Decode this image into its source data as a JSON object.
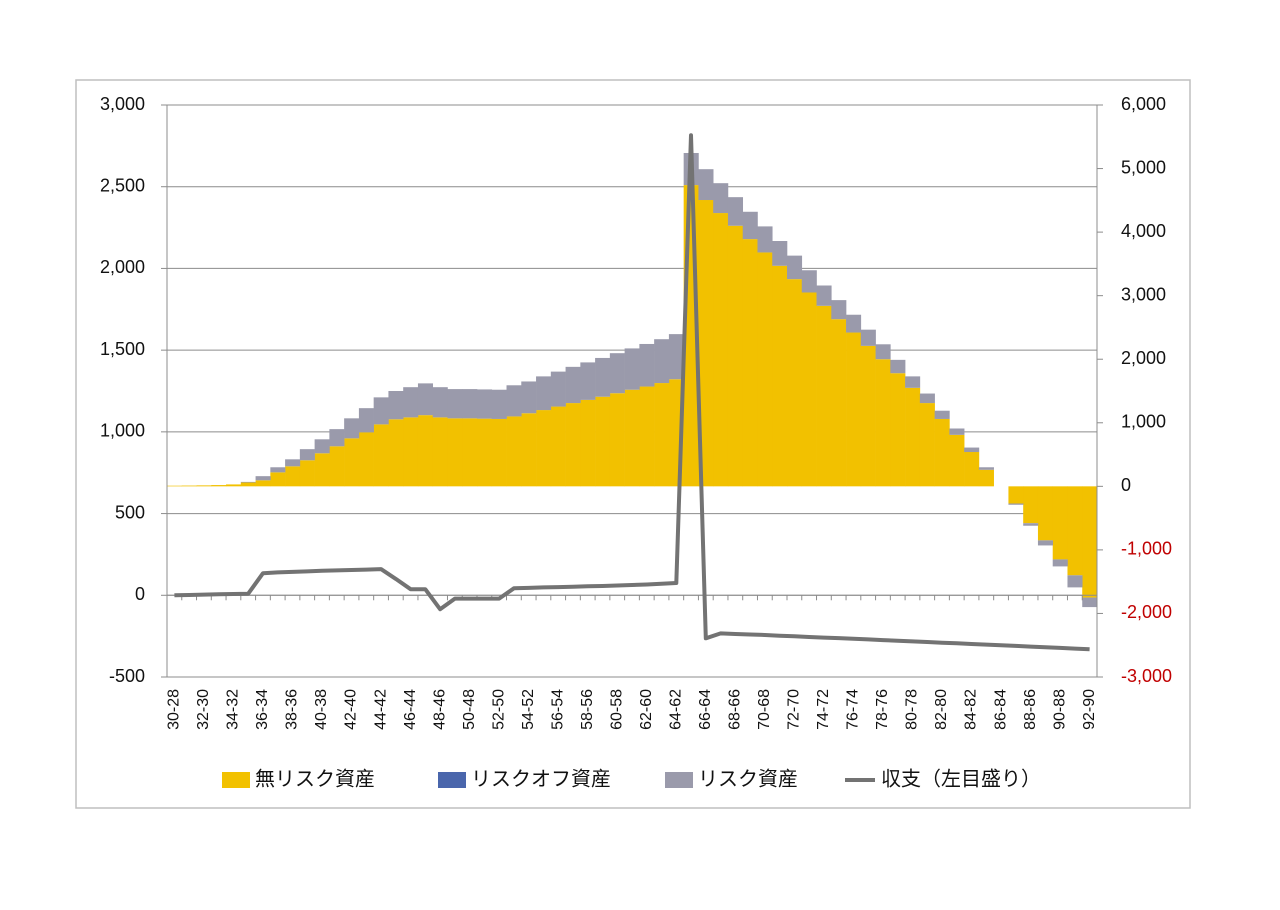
{
  "chart_data": {
    "type": "combo",
    "categories": [
      "30-28",
      null,
      "32-30",
      null,
      "34-32",
      null,
      "36-34",
      null,
      "38-36",
      null,
      "40-38",
      null,
      "42-40",
      null,
      "44-42",
      null,
      "46-44",
      null,
      "48-46",
      null,
      "50-48",
      null,
      "52-50",
      null,
      "54-52",
      null,
      "56-54",
      null,
      "58-56",
      null,
      "60-58",
      null,
      "62-60",
      null,
      "64-62",
      null,
      "66-64",
      null,
      "68-66",
      null,
      "70-68",
      null,
      "72-70",
      null,
      "74-72",
      null,
      "76-74",
      null,
      "78-76",
      null,
      "80-78",
      null,
      "82-80",
      null,
      "84-82",
      null,
      "86-84",
      null,
      "88-86",
      null,
      "90-88",
      null,
      "92-90"
    ],
    "series": [
      {
        "name": "無リスク資産",
        "color": "#f2c100",
        "kind": "bar",
        "axis": "y2",
        "values": [
          10,
          12,
          15,
          20,
          30,
          60,
          95,
          220,
          315,
          410,
          520,
          630,
          755,
          850,
          975,
          1055,
          1085,
          1120,
          1085,
          1070,
          1070,
          1065,
          1060,
          1100,
          1150,
          1200,
          1255,
          1310,
          1360,
          1410,
          1465,
          1520,
          1570,
          1625,
          1685,
          4740,
          4505,
          4300,
          4100,
          3890,
          3680,
          3470,
          3260,
          3050,
          2840,
          2630,
          2420,
          2210,
          2000,
          1780,
          1550,
          1310,
          1060,
          810,
          540,
          260,
          0,
          -270,
          -580,
          -850,
          -1150,
          -1400,
          -1750
        ]
      },
      {
        "name": "リスクオフ資産",
        "color": "#4a66ac",
        "kind": "bar",
        "axis": "y2",
        "values": [
          0,
          0,
          0,
          0,
          0,
          0,
          0,
          0,
          0,
          0,
          0,
          0,
          0,
          0,
          0,
          0,
          0,
          0,
          0,
          0,
          0,
          0,
          0,
          0,
          0,
          0,
          0,
          0,
          0,
          0,
          0,
          0,
          0,
          0,
          0,
          0,
          0,
          0,
          0,
          0,
          0,
          0,
          0,
          0,
          0,
          0,
          0,
          0,
          0,
          0,
          0,
          0,
          0,
          0,
          0,
          0,
          0,
          0,
          0,
          0,
          0,
          0,
          0
        ]
      },
      {
        "name": "リスク資産",
        "color": "#9a9aab",
        "kind": "bar",
        "axis": "y2",
        "values": [
          0,
          0,
          0,
          0,
          0,
          10,
          65,
          80,
          110,
          175,
          220,
          270,
          315,
          380,
          425,
          445,
          475,
          500,
          475,
          460,
          460,
          460,
          460,
          490,
          500,
          530,
          550,
          570,
          590,
          610,
          630,
          650,
          670,
          690,
          710,
          505,
          485,
          470,
          450,
          430,
          410,
          390,
          370,
          350,
          320,
          300,
          280,
          255,
          235,
          210,
          180,
          150,
          130,
          100,
          70,
          40,
          0,
          -20,
          -40,
          -80,
          -110,
          -190,
          -150
        ]
      },
      {
        "name": "収支（左目盛り）",
        "color": "#737373",
        "kind": "line",
        "axis": "y",
        "values": [
          0,
          2,
          4,
          6,
          8,
          10,
          135,
          140,
          143,
          146,
          150,
          152,
          155,
          157,
          160,
          100,
          37,
          37,
          -85,
          -20,
          -20,
          -20,
          -20,
          43,
          45,
          48,
          50,
          52,
          55,
          57,
          60,
          63,
          66,
          70,
          75,
          2815,
          -263,
          -233,
          -237,
          -240,
          -243,
          -247,
          -251,
          -255,
          -259,
          -262,
          -266,
          -270,
          -274,
          -278,
          -282,
          -286,
          -290,
          -294,
          -298,
          -302,
          -306,
          -310,
          -314,
          -318,
          -322,
          -326,
          -330
        ]
      }
    ],
    "ylim": [
      -500,
      3000
    ],
    "yticks": [
      -500,
      0,
      500,
      {
        "value": 1000,
        "label": "1,000"
      },
      {
        "value": 1500,
        "label": "1,500"
      },
      {
        "value": 2000,
        "label": "2,000"
      },
      {
        "value": 2500,
        "label": "2,500"
      },
      {
        "value": 3000,
        "label": "3,000"
      }
    ],
    "y2lim": [
      -3000,
      6000
    ],
    "y2ticks": [
      {
        "value": -3000,
        "label": "-3,000"
      },
      {
        "value": -2000,
        "label": "-2,000"
      },
      {
        "value": -1000,
        "label": "-1,000"
      },
      0,
      {
        "value": 1000,
        "label": "1,000"
      },
      {
        "value": 2000,
        "label": "2,000"
      },
      {
        "value": 3000,
        "label": "3,000"
      },
      {
        "value": 4000,
        "label": "4,000"
      },
      {
        "value": 5000,
        "label": "5,000"
      },
      {
        "value": 6000,
        "label": "6,000"
      }
    ],
    "y2_negative_label_color": "#c00000",
    "grid": true,
    "legend": "bottom"
  }
}
